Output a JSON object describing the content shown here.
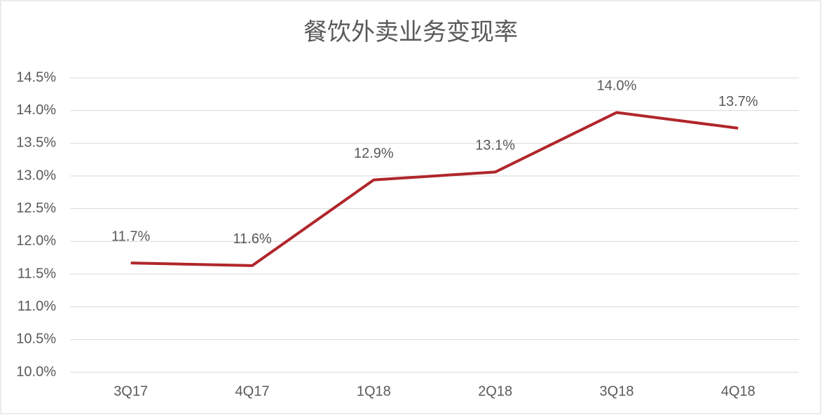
{
  "chart_data": {
    "type": "line",
    "title": "餐饮外卖业务变现率",
    "categories": [
      "3Q17",
      "4Q17",
      "1Q18",
      "2Q18",
      "3Q18",
      "4Q18"
    ],
    "series": [
      {
        "name": "变现率",
        "color": "#b0262b",
        "values": [
          11.67,
          11.63,
          12.94,
          13.06,
          13.97,
          13.73
        ],
        "value_labels": [
          "11.7%",
          "11.6%",
          "12.9%",
          "13.1%",
          "14.0%",
          "13.7%"
        ]
      }
    ],
    "ylim": [
      10,
      14.5
    ],
    "yticks": [
      {
        "value": 10,
        "label": "10.0%"
      },
      {
        "value": 10.5,
        "label": "10.5%"
      },
      {
        "value": 11,
        "label": "11.0%"
      },
      {
        "value": 11.5,
        "label": "11.5%"
      },
      {
        "value": 12,
        "label": "12.0%"
      },
      {
        "value": 12.5,
        "label": "12.5%"
      },
      {
        "value": 13,
        "label": "13.0%"
      },
      {
        "value": 13.5,
        "label": "13.5%"
      },
      {
        "value": 14,
        "label": "14.0%"
      },
      {
        "value": 14.5,
        "label": "14.5%"
      }
    ],
    "grid": true
  }
}
